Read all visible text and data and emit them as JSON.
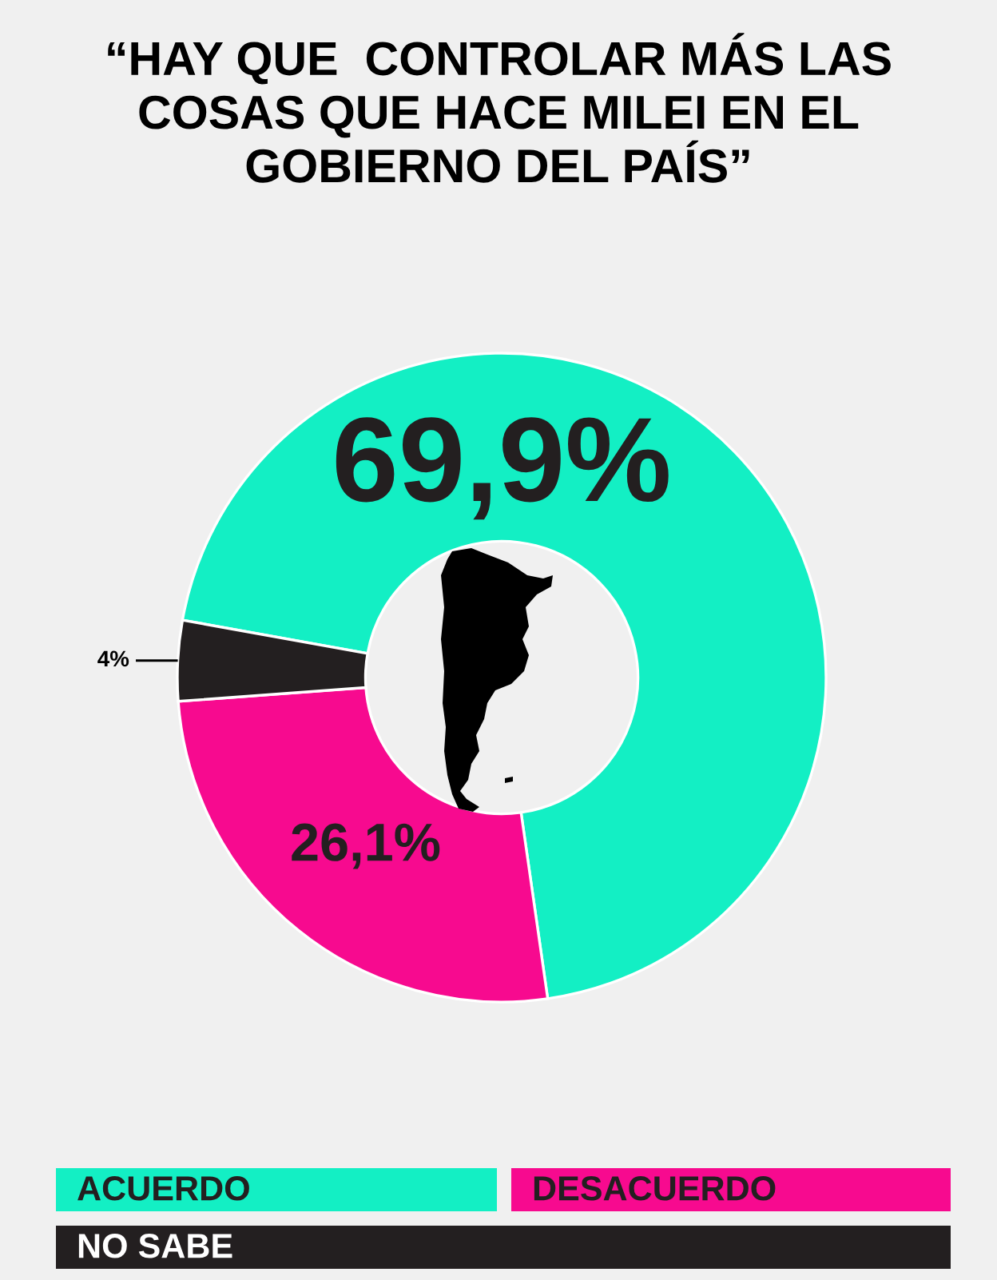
{
  "chart_data": {
    "type": "donut",
    "title": "“HAY QUE  CONTROLAR MÁS LAS\nCOSAS QUE HACE MILEI EN EL\nGOBIERNO DEL PAÍS”",
    "categories": [
      "ACUERDO",
      "DESACUERDO",
      "NO SABE"
    ],
    "values": [
      69.9,
      26.1,
      4
    ],
    "colors": [
      "#13efc4",
      "#f70a8f",
      "#231f20"
    ],
    "value_labels": [
      "69,9%",
      "26,1%",
      "4%"
    ],
    "legend": "bottom"
  }
}
